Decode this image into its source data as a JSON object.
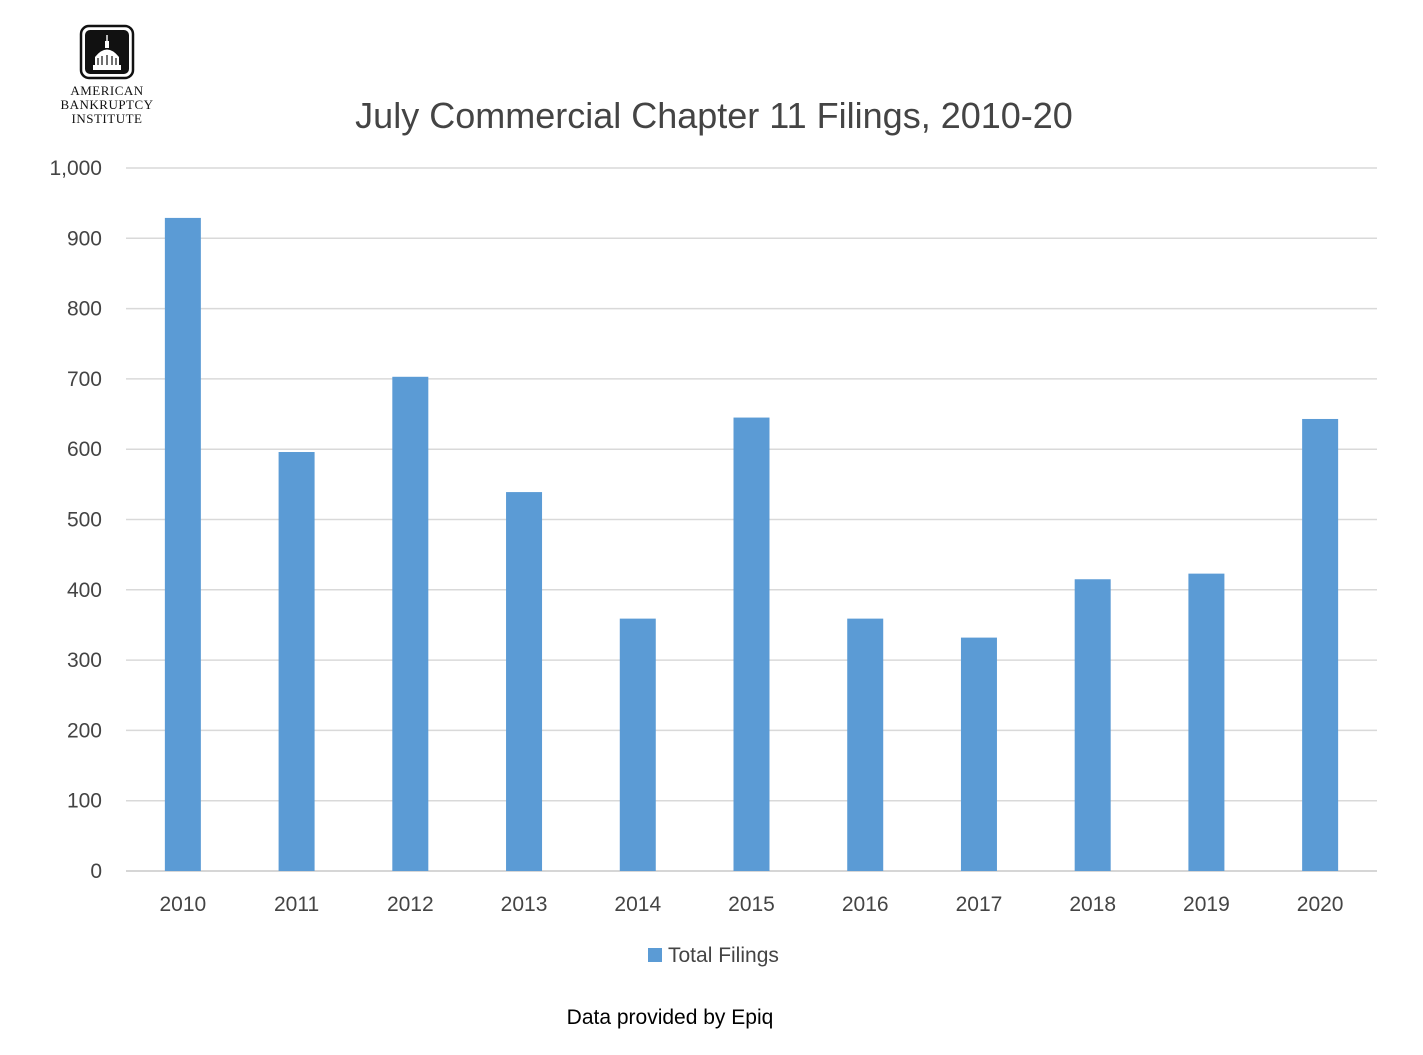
{
  "logo": {
    "lines": [
      "AMERICAN",
      "BANKRUPTCY",
      "INSTITUTE"
    ]
  },
  "chart_data": {
    "type": "bar",
    "title": "July Commercial Chapter 11 Filings, 2010-20",
    "categories": [
      "2010",
      "2011",
      "2012",
      "2013",
      "2014",
      "2015",
      "2016",
      "2017",
      "2018",
      "2019",
      "2020"
    ],
    "series": [
      {
        "name": "Total Filings",
        "values": [
          929,
          596,
          703,
          539,
          359,
          645,
          359,
          332,
          415,
          423,
          643
        ],
        "color": "#5b9bd5"
      }
    ],
    "ylim": [
      0,
      1000
    ],
    "yticks": [
      "0",
      "100",
      "200",
      "300",
      "400",
      "500",
      "600",
      "700",
      "800",
      "900",
      "1,000"
    ],
    "grid": true,
    "legend": "bottom",
    "source_note": "Data provided by Epiq"
  }
}
